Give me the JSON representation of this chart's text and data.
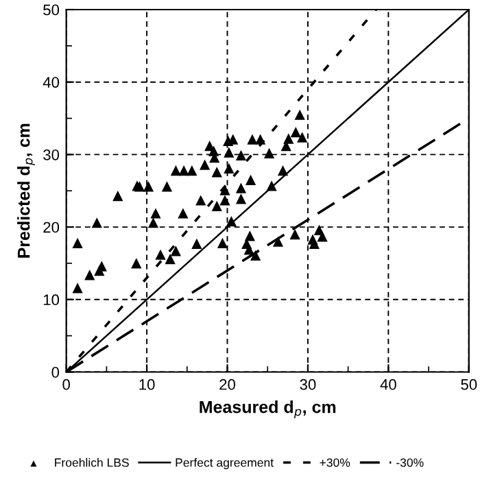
{
  "chart_data": {
    "type": "scatter",
    "xlabel": "Measured d$_{p}$, cm",
    "ylabel": "Predicted d$_{p}$, cm",
    "xlim": [
      0,
      50
    ],
    "ylim": [
      0,
      50
    ],
    "xticks": [
      0,
      10,
      20,
      30,
      40,
      50
    ],
    "yticks": [
      0,
      10,
      20,
      30,
      40,
      50
    ],
    "grid": true,
    "legend": "bottom",
    "series": [
      {
        "name": "Froehlich LBS",
        "marker": "triangle",
        "color": "#000000",
        "x": [
          1.4,
          1.4,
          2.9,
          4.1,
          4.4,
          3.8,
          6.4,
          8.7,
          8.8,
          9.1,
          10.2,
          12.5,
          11.1,
          10.8,
          11.7,
          12.9,
          13.6,
          13.6,
          14.6,
          15.6,
          14.5,
          16.2,
          16.7,
          17.2,
          17.8,
          18.3,
          18.4,
          18.7,
          18.7,
          19.7,
          19.7,
          19.4,
          20.1,
          20.2,
          20.2,
          20.7,
          20.5,
          21.7,
          21.7,
          21.7,
          23.1,
          24.1,
          22.9,
          22.8,
          22.7,
          23.5,
          22.4,
          25.5,
          25.2,
          29.0,
          28.5,
          29.3,
          27.6,
          27.3,
          26.9,
          26.3,
          28.4,
          30.6,
          30.8,
          31.4,
          31.8
        ],
        "values": [
          11.6,
          17.8,
          13.4,
          14.0,
          14.6,
          20.6,
          24.3,
          15.0,
          25.7,
          25.6,
          25.6,
          25.6,
          21.9,
          20.6,
          16.2,
          15.6,
          16.7,
          27.8,
          27.8,
          27.8,
          21.9,
          17.7,
          23.7,
          28.6,
          31.2,
          30.5,
          29.6,
          27.6,
          22.9,
          25.1,
          23.7,
          17.8,
          31.9,
          30.3,
          28.1,
          32.1,
          20.8,
          29.9,
          25.4,
          23.9,
          32.1,
          32.1,
          26.5,
          18.8,
          16.9,
          16.1,
          17.7,
          25.7,
          30.2,
          35.5,
          33.1,
          32.4,
          32.2,
          31.2,
          27.8,
          18.0,
          19.0,
          18.3,
          17.7,
          19.6,
          18.7
        ]
      },
      {
        "name": "Perfect agreement",
        "type": "line",
        "line_style": "solid",
        "color": "#000000",
        "x": [
          0,
          50
        ],
        "values": [
          0,
          50
        ]
      },
      {
        "name": "+30%",
        "type": "line",
        "line_style": "dotted",
        "color": "#000000",
        "x": [
          0,
          38.46
        ],
        "values": [
          0,
          50
        ]
      },
      {
        "name": "-30%",
        "type": "line",
        "line_style": "dashed",
        "color": "#000000",
        "x": [
          0,
          50
        ],
        "values": [
          0,
          35
        ]
      }
    ]
  }
}
